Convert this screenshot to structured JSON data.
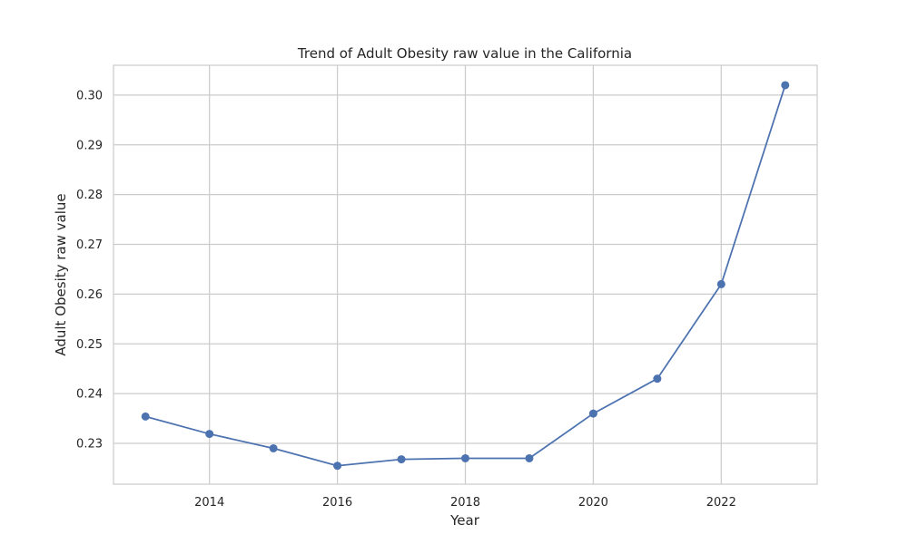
{
  "chart_data": {
    "type": "line",
    "title": "Trend of Adult Obesity raw value in the California",
    "xlabel": "Year",
    "ylabel": "Adult Obesity raw value",
    "xlim": [
      2012.5,
      2023.5
    ],
    "ylim": [
      0.2218,
      0.306
    ],
    "x_ticks": [
      2014,
      2016,
      2018,
      2020,
      2022
    ],
    "x_tick_labels": [
      "2014",
      "2016",
      "2018",
      "2020",
      "2022"
    ],
    "y_ticks": [
      0.23,
      0.24,
      0.25,
      0.26,
      0.27,
      0.28,
      0.29,
      0.3
    ],
    "y_tick_labels": [
      "0.23",
      "0.24",
      "0.25",
      "0.26",
      "0.27",
      "0.28",
      "0.29",
      "0.30"
    ],
    "grid": true,
    "series": [
      {
        "x": [
          2013,
          2014,
          2015,
          2016,
          2017,
          2018,
          2019,
          2020,
          2021,
          2022,
          2023
        ],
        "values": [
          0.2354,
          0.2319,
          0.229,
          0.2255,
          0.2268,
          0.227,
          0.227,
          0.236,
          0.243,
          0.262,
          0.302
        ],
        "color": "#4c72b0",
        "marker": "circle"
      }
    ]
  }
}
